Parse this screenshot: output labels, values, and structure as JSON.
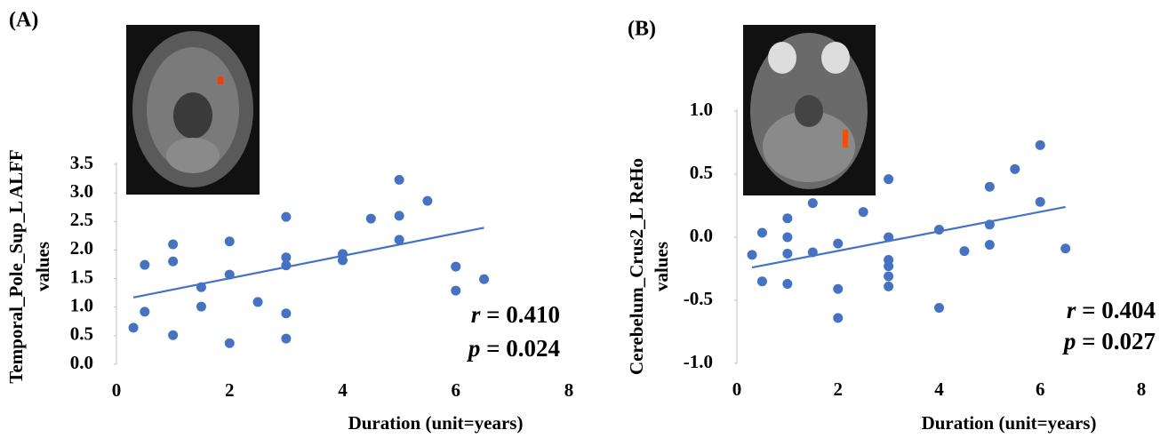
{
  "chart_data": [
    {
      "type": "scatter",
      "panel_label": "(A)",
      "xlabel": "Duration (unit=years)",
      "ylabel": [
        "Temporal_Pole_Sup_L ALFF",
        "values"
      ],
      "xlim": [
        0,
        8
      ],
      "xticks": [
        0,
        2,
        4,
        6,
        8
      ],
      "ylim": [
        0,
        3.5
      ],
      "yticks": [
        {
          "value": 0,
          "label": "0.0"
        },
        0.5,
        {
          "value": 1,
          "label": "1.0"
        },
        1.5,
        {
          "value": 2,
          "label": "2.0"
        },
        2.5,
        {
          "value": 3,
          "label": "3.0"
        },
        3.5
      ],
      "color": "#4472c4",
      "x": [
        0.3,
        0.5,
        0.5,
        1,
        1,
        1,
        1.5,
        1.5,
        2,
        2,
        2,
        2.5,
        3,
        3,
        3,
        3,
        3,
        4,
        4,
        4.5,
        5,
        5,
        5,
        5.5,
        6,
        6,
        6.5
      ],
      "y": [
        0.64,
        1.74,
        0.92,
        2.1,
        1.8,
        0.51,
        1.35,
        1.01,
        2.15,
        1.57,
        0.37,
        1.09,
        2.58,
        1.87,
        1.73,
        0.89,
        0.45,
        1.93,
        1.82,
        2.55,
        3.23,
        2.6,
        2.18,
        2.86,
        1.71,
        1.29,
        1.49
      ],
      "trendline": {
        "x": [
          0.3,
          6.5
        ],
        "y": [
          1.17,
          2.39
        ]
      },
      "stats": [
        {
          "symbol": "r",
          "text": "= 0.410"
        },
        {
          "symbol": "p",
          "text": "= 0.024"
        }
      ]
    },
    {
      "type": "scatter",
      "panel_label": "(B)",
      "xlabel": "Duration (unit=years)",
      "ylabel": [
        "Cerebelum_Crus2_L ReHo",
        "values"
      ],
      "xlim": [
        0,
        8
      ],
      "xticks": [
        0,
        2,
        4,
        6,
        8
      ],
      "ylim": [
        -1,
        1
      ],
      "yticks": [
        {
          "value": -1,
          "label": "-1.0"
        },
        -0.5,
        {
          "value": 0,
          "label": "0.0"
        },
        0.5,
        {
          "value": 1,
          "label": "1.0"
        }
      ],
      "color": "#4472c4",
      "x": [
        0.3,
        0.5,
        0.5,
        1,
        1,
        1,
        1,
        1.5,
        1.5,
        2,
        2,
        2,
        2.5,
        3,
        3,
        3,
        3,
        3,
        3,
        4,
        4,
        4.5,
        5,
        5,
        5,
        5.5,
        6,
        6,
        6.5
      ],
      "y": [
        -0.14,
        0.035,
        -0.35,
        0.15,
        0,
        -0.13,
        -0.37,
        0.27,
        -0.12,
        -0.05,
        -0.41,
        -0.64,
        0.2,
        0.46,
        0,
        -0.18,
        -0.23,
        -0.31,
        -0.39,
        0.06,
        -0.56,
        -0.11,
        0.4,
        0.1,
        -0.06,
        0.54,
        0.73,
        0.28,
        -0.09
      ],
      "trendline": {
        "x": [
          0.3,
          6.5
        ],
        "y": [
          -0.24,
          0.24
        ]
      },
      "stats": [
        {
          "symbol": "r",
          "text": "= 0.404"
        },
        {
          "symbol": "p",
          "text": "= 0.027"
        }
      ]
    }
  ]
}
